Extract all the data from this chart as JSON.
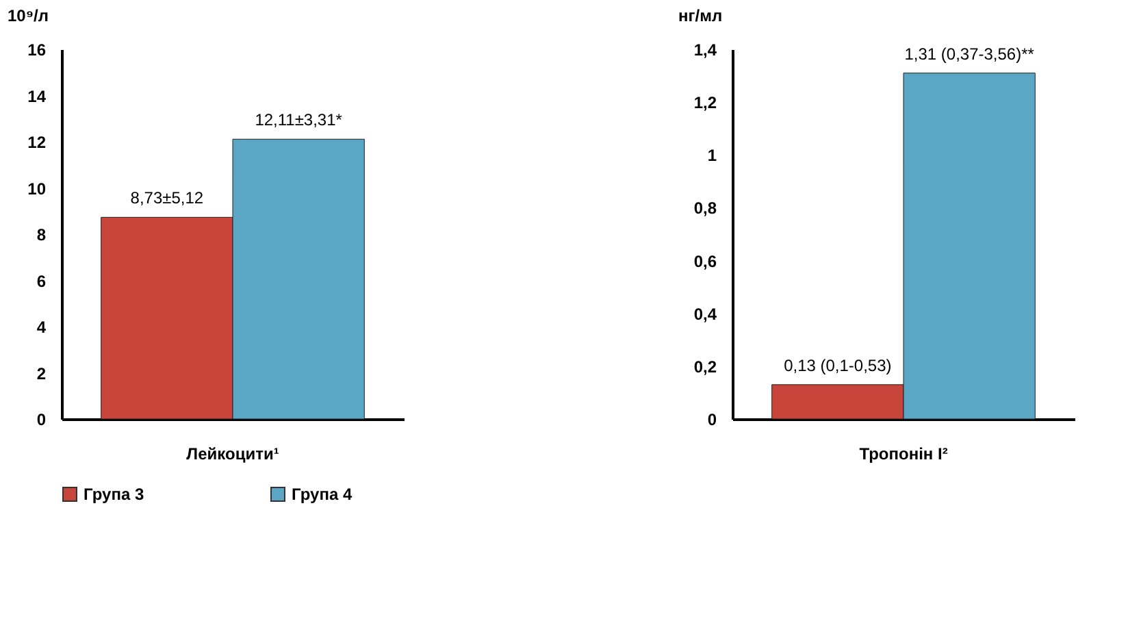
{
  "chart_data": [
    {
      "type": "bar",
      "ylabel": "10⁹/л",
      "categories": [
        "Лейкоцити¹"
      ],
      "ylim": [
        0,
        16
      ],
      "yticks": [
        0,
        2,
        4,
        6,
        8,
        10,
        12,
        14,
        16
      ],
      "grid": false,
      "legend": "bottom",
      "series": [
        {
          "name": "Група 3",
          "color": "#c8453c",
          "values": [
            8.73
          ],
          "value_labels": [
            "8,73±5,12"
          ]
        },
        {
          "name": "Група 4",
          "color": "#5aa6c4",
          "values": [
            12.11
          ],
          "value_labels": [
            "12,11±3,31*"
          ]
        }
      ]
    },
    {
      "type": "bar",
      "ylabel": "нг/мл",
      "categories": [
        "Тропонін I²"
      ],
      "ylim": [
        0,
        1.4
      ],
      "yticks": [
        0,
        {
          "value": 0.2,
          "label": "0,2"
        },
        {
          "value": 0.4,
          "label": "0,4"
        },
        {
          "value": 0.6,
          "label": "0,6"
        },
        {
          "value": 0.8,
          "label": "0,8"
        },
        1,
        {
          "value": 1.2,
          "label": "1,2"
        },
        {
          "value": 1.4,
          "label": "1,4"
        }
      ],
      "grid": false,
      "legend": "bottom",
      "series": [
        {
          "name": "Група 3",
          "color": "#c8453c",
          "values": [
            0.13
          ],
          "value_labels": [
            "0,13 (0,1-0,53)"
          ]
        },
        {
          "name": "Група 4",
          "color": "#5aa6c4",
          "values": [
            1.31
          ],
          "value_labels": [
            "1,31 (0,37-3,56)**"
          ]
        }
      ]
    }
  ]
}
